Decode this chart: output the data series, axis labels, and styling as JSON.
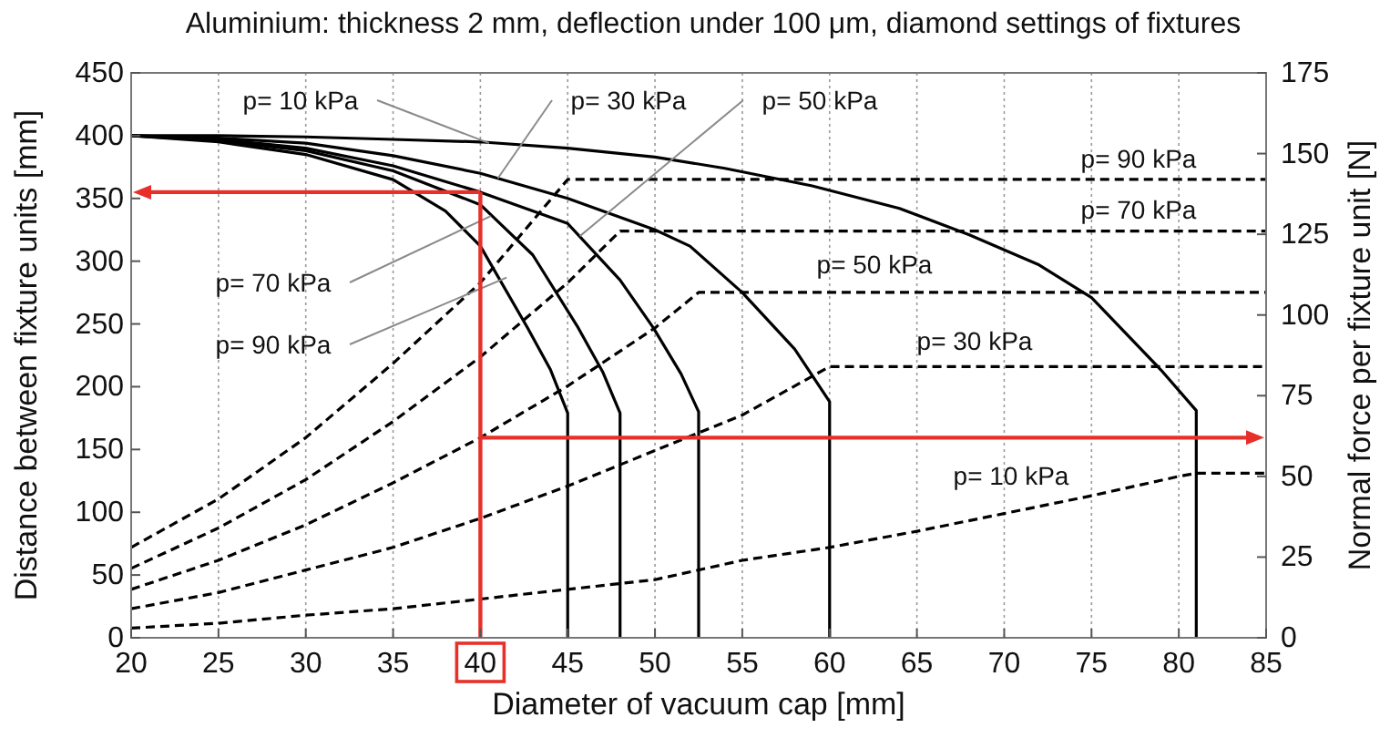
{
  "chart_data": {
    "type": "line",
    "title": "Aluminium: thickness 2 mm, deflection under 100 μm, diamond settings of fixtures",
    "xlabel": "Diameter of vacuum cap [mm]",
    "ylabel": "Distance between fixture units [mm]",
    "y2label": "Normal force per fixture unit [N]",
    "xlim": [
      20,
      85
    ],
    "xticks": [
      20,
      25,
      30,
      35,
      40,
      45,
      50,
      55,
      60,
      65,
      70,
      75,
      80,
      85
    ],
    "ylim": [
      0,
      450
    ],
    "yticks": [
      0,
      50,
      100,
      150,
      200,
      250,
      300,
      350,
      400,
      450
    ],
    "y2lim": [
      0,
      175
    ],
    "y2ticks": [
      0,
      25,
      50,
      75,
      100,
      125,
      150,
      175
    ],
    "grid": "x",
    "annotations": [
      {
        "text": "p= 10 kPa",
        "x": 40.5,
        "y": 394
      },
      {
        "text": "p= 30 kPa",
        "x": 41,
        "y": 366
      },
      {
        "text": "p= 50 kPa",
        "x": 45.7,
        "y": 320
      },
      {
        "text": "p= 70 kPa",
        "x": 40.6,
        "y": 336
      },
      {
        "text": "p= 90 kPa",
        "x": 41.5,
        "y": 287
      }
    ],
    "series": [
      {
        "color": "#000000",
        "line_style": "solid",
        "x": [
          20,
          25,
          30,
          35,
          40,
          45,
          50,
          54,
          59,
          64,
          68,
          72,
          75,
          79,
          81,
          81
        ],
        "values": [
          400,
          400,
          399,
          397,
          395,
          390,
          383,
          374,
          360,
          342,
          321,
          297,
          271,
          213,
          181,
          0
        ]
      },
      {
        "color": "#000000",
        "line_style": "solid",
        "x": [
          20,
          25,
          30,
          35,
          40,
          45,
          50,
          52,
          55,
          58,
          60,
          60
        ],
        "values": [
          400,
          398,
          394,
          384,
          370,
          350,
          325,
          312,
          275,
          230,
          188,
          0
        ]
      },
      {
        "color": "#000000",
        "line_style": "solid",
        "x": [
          20,
          25,
          30,
          35,
          40,
          45,
          48,
          49.9,
          51.5,
          52.5,
          52.5
        ],
        "values": [
          400,
          397,
          390,
          376,
          355,
          330,
          285,
          247,
          210,
          180,
          0
        ]
      },
      {
        "color": "#000000",
        "line_style": "solid",
        "x": [
          20,
          25,
          30,
          35,
          40,
          43,
          45.6,
          47,
          48,
          48
        ],
        "values": [
          400,
          396,
          388,
          372,
          345,
          305,
          247,
          212,
          179,
          0
        ]
      },
      {
        "color": "#000000",
        "line_style": "solid",
        "x": [
          20,
          25,
          30,
          35,
          38,
          40,
          42.7,
          44,
          45,
          45
        ],
        "values": [
          400,
          395,
          385,
          365,
          340,
          312,
          247,
          214,
          179,
          0
        ]
      },
      {
        "name": "p= 10 kPa",
        "color": "#000000",
        "line_style": "dashed",
        "axis": "y2",
        "x": [
          20,
          25,
          30,
          35,
          40,
          45,
          50,
          55,
          60,
          65,
          70,
          75,
          80,
          81,
          85
        ],
        "values": [
          3,
          4.5,
          7,
          9,
          12,
          15,
          18,
          24,
          28,
          33,
          38.5,
          44,
          50,
          51,
          51
        ]
      },
      {
        "name": "p= 30 kPa",
        "color": "#000000",
        "line_style": "dashed",
        "axis": "y2",
        "x": [
          20,
          25,
          30,
          35,
          40,
          45,
          50,
          55,
          60,
          85
        ],
        "values": [
          9,
          14,
          21,
          28,
          37,
          47,
          58,
          69,
          84,
          84
        ]
      },
      {
        "name": "p= 50 kPa",
        "color": "#000000",
        "line_style": "dashed",
        "axis": "y2",
        "x": [
          20,
          25,
          30,
          35,
          40,
          45,
          50,
          52.5,
          85
        ],
        "values": [
          15,
          24,
          35,
          48,
          62,
          78,
          96,
          107,
          107
        ]
      },
      {
        "name": "p= 70 kPa",
        "color": "#000000",
        "line_style": "dashed",
        "axis": "y2",
        "x": [
          20,
          25,
          30,
          35,
          40,
          45,
          48,
          85
        ],
        "values": [
          21.5,
          34,
          49,
          67,
          87,
          110,
          126,
          126
        ]
      },
      {
        "name": "p= 90 kPa",
        "color": "#000000",
        "line_style": "dashed",
        "axis": "y2",
        "x": [
          20,
          25,
          30,
          35,
          40,
          45,
          85
        ],
        "values": [
          28,
          43,
          62,
          85,
          110,
          142,
          142
        ]
      }
    ],
    "ref_lines": [
      {
        "axis": "x",
        "value": 40,
        "color": "#e8302a"
      },
      {
        "axis": "y",
        "value": 355,
        "color": "#e8302a"
      },
      {
        "axis": "y2",
        "value": 62,
        "color": "#e8302a"
      }
    ]
  }
}
